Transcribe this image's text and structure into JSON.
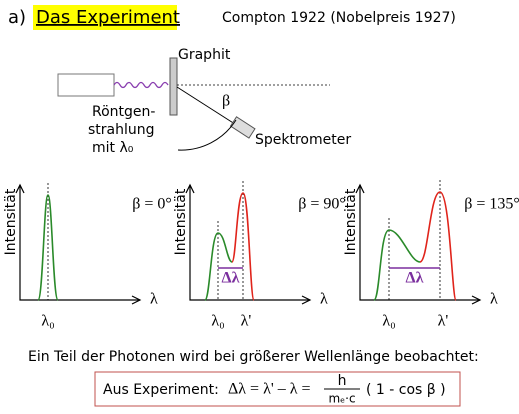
{
  "header": {
    "label": "a)",
    "title": "Das Experiment",
    "note": "Compton 1922 (Nobelpreis 1927)"
  },
  "setup": {
    "target": "Graphit",
    "source": [
      "Röntgen-",
      "strahlung",
      "mit λ₀"
    ],
    "angle": "β",
    "detector": "Spektrometer"
  },
  "plots": [
    {
      "y_label": "Intensität",
      "x_label": "λ",
      "angle": "β = 0°",
      "ticks": [
        "λ₀"
      ]
    },
    {
      "y_label": "Intensität",
      "x_label": "λ",
      "angle": "β = 90°",
      "ticks": [
        "λ₀",
        "λ'"
      ],
      "shift": "Δλ"
    },
    {
      "y_label": "Intensität",
      "x_label": "λ",
      "angle": "β = 135°",
      "ticks": [
        "λ₀",
        "λ'"
      ],
      "shift": "Δλ"
    }
  ],
  "statement": "Ein Teil der Photonen wird bei größerer Wellenlänge beobachtet:",
  "formula": {
    "lead": "Aus Experiment:",
    "lhs": "Δλ = λ' – λ =",
    "numerator": "h",
    "denominator": "mₑ·c",
    "factor": "( 1 - cos β )"
  }
}
